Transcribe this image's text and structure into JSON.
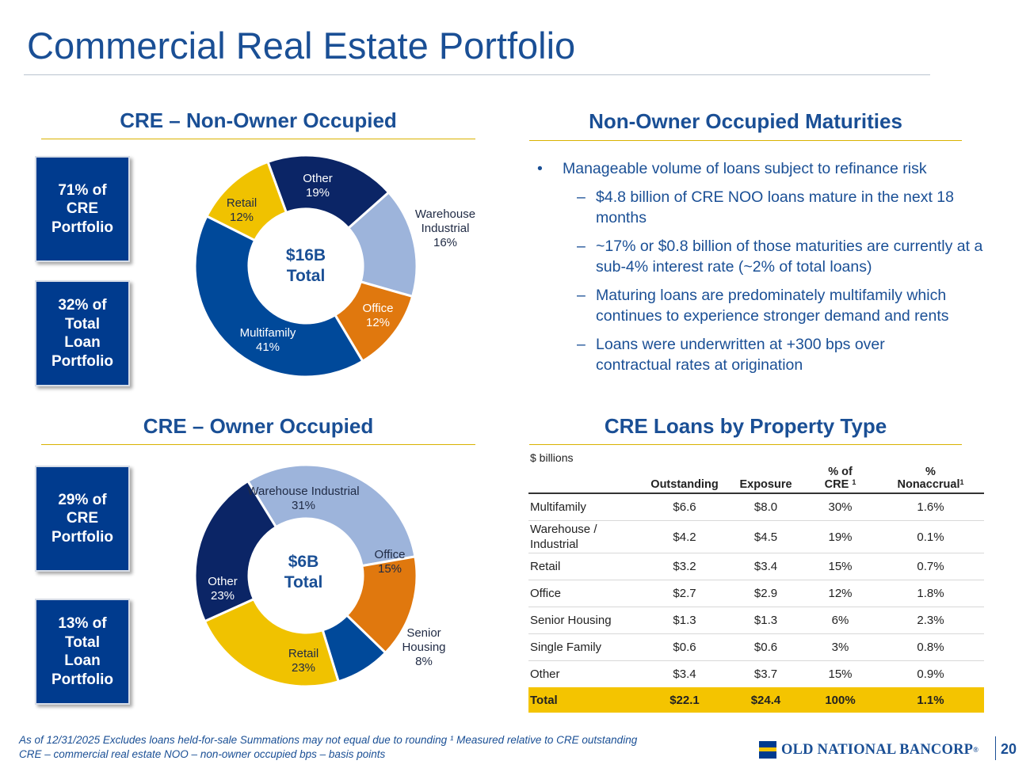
{
  "title": "Commercial Real Estate Portfolio",
  "noo": {
    "heading": "CRE – Non-Owner Occupied",
    "stat1": [
      "71% of",
      "CRE",
      "Portfolio"
    ],
    "stat2": [
      "32% of",
      "Total",
      "Loan",
      "Portfolio"
    ],
    "center": [
      "$16B",
      "Total"
    ],
    "segments": [
      {
        "name": "Other",
        "pct": 19,
        "label": "19%",
        "color": "#0b2566"
      },
      {
        "name": "Warehouse Industrial",
        "line1": "Warehouse",
        "line2": "Industrial",
        "pct": 16,
        "label": "16%",
        "color": "#9db4db"
      },
      {
        "name": "Office",
        "pct": 12,
        "label": "12%",
        "color": "#e0780e"
      },
      {
        "name": "Multifamily",
        "pct": 41,
        "label": "41%",
        "color": "#00499a"
      },
      {
        "name": "Retail",
        "pct": 12,
        "label": "12%",
        "color": "#f0c200"
      }
    ]
  },
  "oo": {
    "heading": "CRE – Owner Occupied",
    "stat1": [
      "29% of",
      "CRE",
      "Portfolio"
    ],
    "stat2": [
      "13% of",
      "Total",
      "Loan",
      "Portfolio"
    ],
    "center": [
      "$6B",
      "Total"
    ],
    "segments": [
      {
        "name": "Warehouse Industrial",
        "pct": 31,
        "label": "31%",
        "color": "#9db4db"
      },
      {
        "name": "Office",
        "pct": 15,
        "label": "15%",
        "color": "#e0780e"
      },
      {
        "name": "Senior Housing",
        "line1": "Senior",
        "line2": "Housing",
        "pct": 8,
        "label": "8%",
        "color": "#00499a"
      },
      {
        "name": "Retail",
        "pct": 23,
        "label": "23%",
        "color": "#f0c200"
      },
      {
        "name": "Other",
        "pct": 23,
        "label": "23%",
        "color": "#0b2566"
      }
    ]
  },
  "maturities": {
    "heading": "Non-Owner Occupied Maturities",
    "main": "Manageable volume of loans subject to refinance risk",
    "subs": [
      "$4.8 billion of CRE NOO loans mature in the next 18 months",
      "~17% or $0.8 billion of those maturities are currently at a sub-4% interest rate (~2% of total loans)",
      "Maturing loans are predominately multifamily which continues to experience stronger demand and rents",
      "Loans were underwritten at +300 bps over contractual rates at origination"
    ]
  },
  "table": {
    "heading": "CRE Loans by Property Type",
    "units": "$ billions",
    "columns": [
      "Outstanding",
      "Exposure",
      "% of CRE",
      "% Nonaccrual"
    ],
    "col3_line1": "% of",
    "col3_line2": "CRE",
    "col4_line1": "%",
    "col4_line2": "Nonaccrual",
    "sup": "1",
    "rows": [
      {
        "type": "Multifamily",
        "outstanding": "$6.6",
        "exposure": "$8.0",
        "pct": "30%",
        "nonaccrual": "1.6%"
      },
      {
        "type": "Warehouse / Industrial",
        "line1": "Warehouse /",
        "line2": "Industrial",
        "outstanding": "$4.2",
        "exposure": "$4.5",
        "pct": "19%",
        "nonaccrual": "0.1%"
      },
      {
        "type": "Retail",
        "outstanding": "$3.2",
        "exposure": "$3.4",
        "pct": "15%",
        "nonaccrual": "0.7%"
      },
      {
        "type": "Office",
        "outstanding": "$2.7",
        "exposure": "$2.9",
        "pct": "12%",
        "nonaccrual": "1.8%"
      },
      {
        "type": "Senior Housing",
        "outstanding": "$1.3",
        "exposure": "$1.3",
        "pct": "6%",
        "nonaccrual": "2.3%"
      },
      {
        "type": "Single Family",
        "outstanding": "$0.6",
        "exposure": "$0.6",
        "pct": "3%",
        "nonaccrual": "0.8%"
      },
      {
        "type": "Other",
        "outstanding": "$3.4",
        "exposure": "$3.7",
        "pct": "15%",
        "nonaccrual": "0.9%"
      }
    ],
    "total": {
      "type": "Total",
      "outstanding": "$22.1",
      "exposure": "$24.4",
      "pct": "100%",
      "nonaccrual": "1.1%"
    }
  },
  "footnote": {
    "line1": "As of 12/31/2025   Excludes loans held-for-sale   Summations may not equal due to rounding   ¹ Measured relative to CRE outstanding",
    "line2": "CRE – commercial real estate   NOO – non-owner occupied   bps – basis points"
  },
  "logo": "OLD NATIONAL BANCORP",
  "logo_mark": "®",
  "page_number": "20"
}
